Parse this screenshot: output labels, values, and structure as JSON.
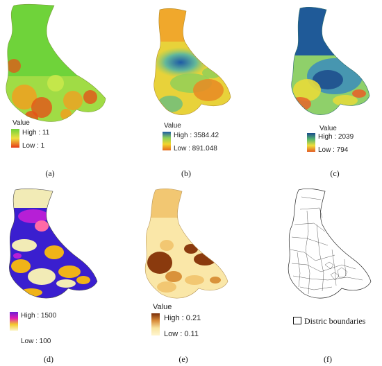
{
  "panels": [
    {
      "id": "a",
      "caption": "(a)",
      "legend_title": "Value",
      "high_label": "High : 11",
      "low_label": "Low : 1",
      "colors": [
        "#44d62c",
        "#c8e84a",
        "#f7a31c",
        "#e8561a"
      ],
      "ramp": [
        "#6fd33a",
        "#f0e040",
        "#e63a1a"
      ]
    },
    {
      "id": "b",
      "caption": "(b)",
      "legend_title": "Value",
      "high_label": "High : 3584.42",
      "low_label": "Low : 891.048",
      "colors": [
        "#1f5fa8",
        "#7cc36a",
        "#e8d23a",
        "#e88a25"
      ],
      "ramp": [
        "#1d5aa6",
        "#8cd05a",
        "#f2d42c",
        "#e66a1f"
      ]
    },
    {
      "id": "c",
      "caption": "(c)",
      "legend_title": "Value",
      "high_label": "High : 2039",
      "low_label": "Low : 794",
      "colors": [
        "#1a4f8f",
        "#3f8fb8",
        "#8fd06a",
        "#e8da3a",
        "#e6642a"
      ],
      "ramp": [
        "#1a4c8c",
        "#58b86c",
        "#f0de3a",
        "#e25d22"
      ]
    },
    {
      "id": "d",
      "caption": "(d)",
      "legend_title": "",
      "high_label": "High : 1500",
      "low_label": "Low : 100",
      "colors": [
        "#3a1fcf",
        "#f0b318",
        "#f2ebb6",
        "#b61fd6",
        "#ff6aa6"
      ],
      "ramp": [
        "#6b1fd6",
        "#e01fb2",
        "#f4c92a",
        "#fbf5c8"
      ]
    },
    {
      "id": "e",
      "caption": "(e)",
      "legend_title": "Value",
      "high_label": "High : 0.21",
      "low_label": "Low : 0.11",
      "colors": [
        "#8a3a0e",
        "#f2c772",
        "#fae7a8",
        "#d9923a"
      ],
      "ramp": [
        "#7a2e08",
        "#d98c3a",
        "#f9e4a0",
        "#fff5cf"
      ]
    },
    {
      "id": "f",
      "caption": "(f)",
      "legend_title": "",
      "high_label": "",
      "low_label": "",
      "boundary_label": "Distric boundaries",
      "colors": [
        "#ffffff",
        "#222222"
      ],
      "ramp": []
    }
  ]
}
